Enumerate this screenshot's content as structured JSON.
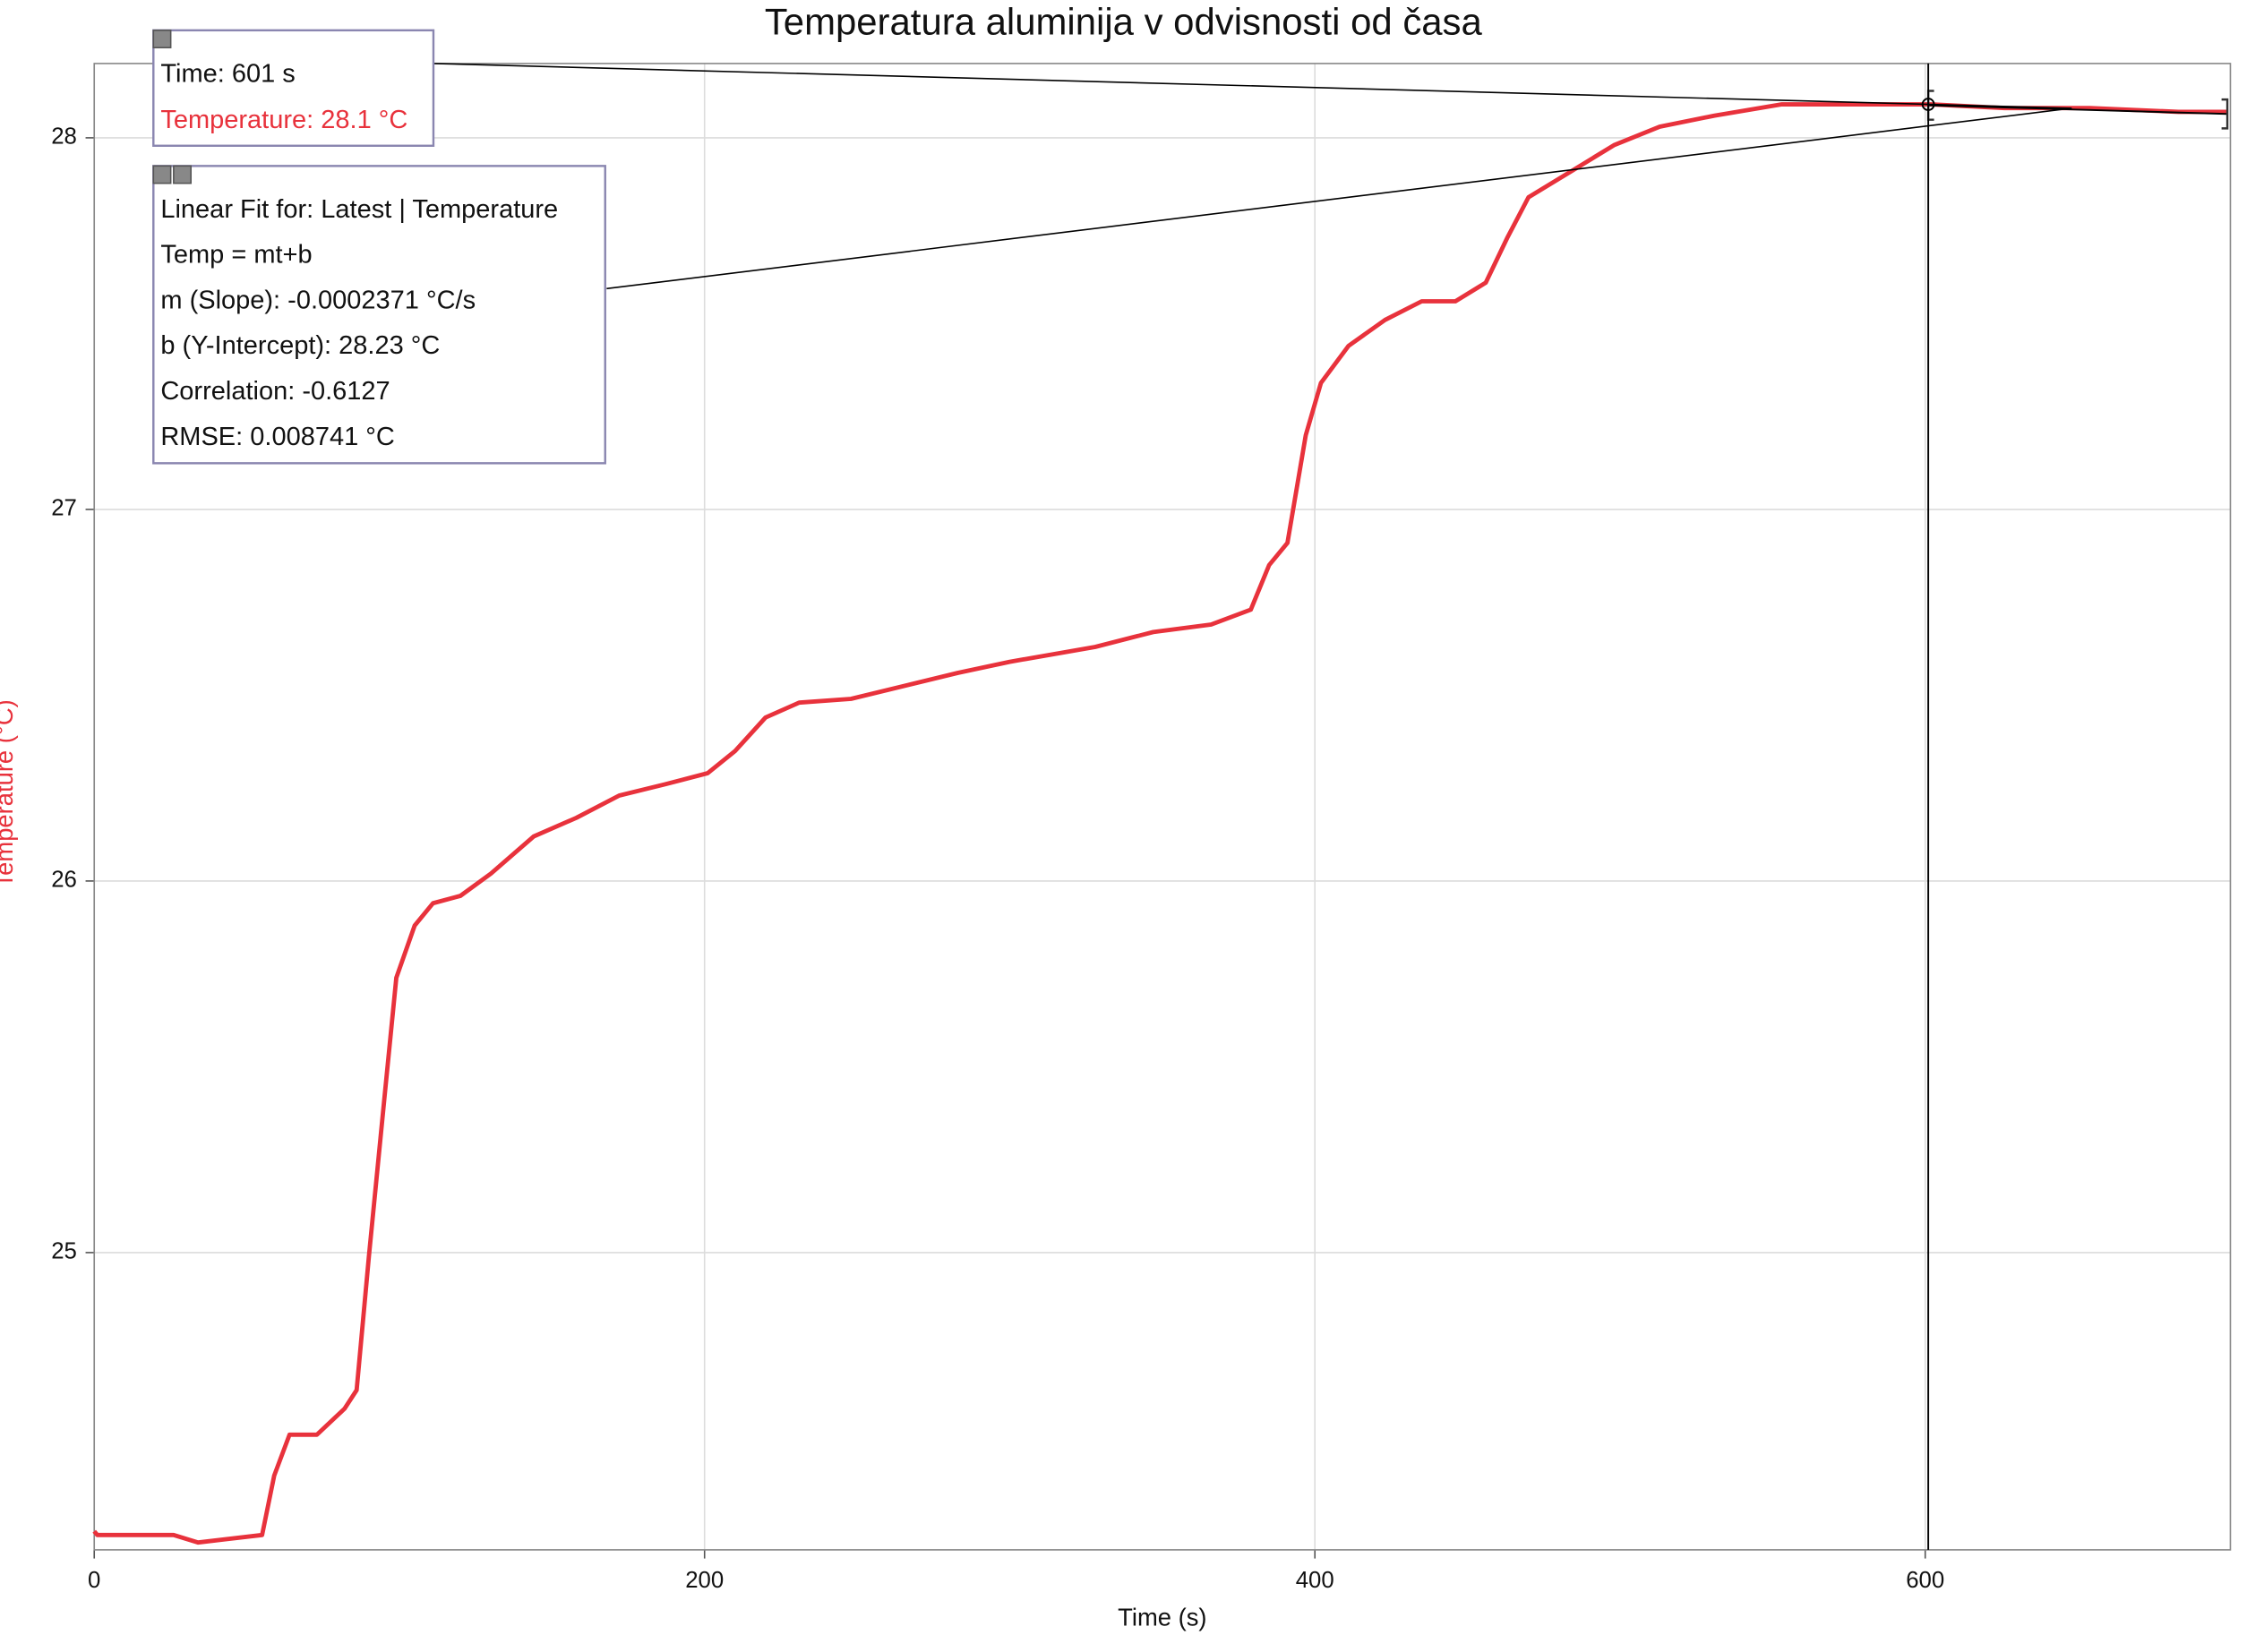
{
  "chart_data": {
    "type": "line",
    "title": "Temperatura aluminija v odvisnosti od časa",
    "x_label": "Time (s)",
    "y_label": "Temperature (°C)",
    "xlim": [
      0,
      700
    ],
    "ylim": [
      24.2,
      28.2
    ],
    "xticks": [
      0,
      200,
      400,
      600
    ],
    "yticks": [
      25,
      26,
      27,
      28
    ],
    "grid": true,
    "x": [
      0,
      1,
      26,
      34,
      55,
      59,
      64,
      73,
      82,
      86,
      90,
      95,
      99,
      105,
      111,
      120,
      130,
      144,
      158,
      172,
      187,
      201,
      210,
      220,
      231,
      248,
      283,
      300,
      328,
      347,
      366,
      379,
      385,
      391,
      397,
      402,
      411,
      423,
      435,
      446,
      456,
      463,
      470,
      484,
      498,
      513,
      531,
      553,
      583,
      602,
      626,
      654,
      683,
      699
    ],
    "series": [
      {
        "name": "Temperature",
        "color": "#e8323c",
        "values": [
          24.25,
          24.24,
          24.24,
          24.22,
          24.24,
          24.4,
          24.51,
          24.51,
          24.58,
          24.63,
          24.99,
          25.41,
          25.74,
          25.88,
          25.94,
          25.96,
          26.02,
          26.12,
          26.17,
          26.23,
          26.26,
          26.29,
          26.35,
          26.44,
          26.48,
          26.49,
          26.56,
          26.59,
          26.63,
          26.67,
          26.69,
          26.73,
          26.85,
          26.91,
          27.2,
          27.34,
          27.44,
          27.51,
          27.56,
          27.56,
          27.61,
          27.73,
          27.84,
          27.91,
          27.98,
          28.03,
          28.06,
          28.09,
          28.09,
          28.09,
          28.08,
          28.08,
          28.07,
          28.07
        ]
      }
    ],
    "cursor": {
      "x": 601,
      "y": 28.09
    },
    "fit": {
      "slope": -0.0002371,
      "intercept": 28.23,
      "xlim": [
        601,
        699
      ]
    },
    "tooltip": {
      "time": "Time: 601 s",
      "temperature": "Temperature: 28.1 °C"
    },
    "fit_box": {
      "lines": [
        "Linear Fit for: Latest | Temperature",
        "Temp = mt+b",
        "m (Slope): -0.0002371 °C/s",
        "b (Y-Intercept): 28.23 °C",
        "Correlation: -0.6127",
        "RMSE: 0.008741 °C"
      ]
    }
  }
}
